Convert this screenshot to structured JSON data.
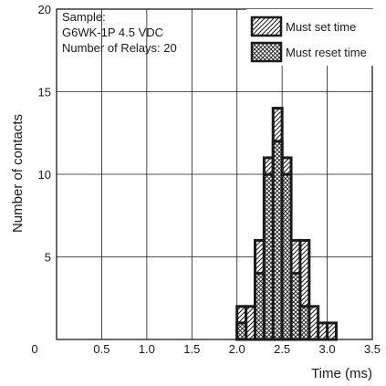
{
  "chart_data": {
    "type": "histogram",
    "xlabel": "Time (ms)",
    "ylabel": "Number of contacts",
    "xlim": [
      0,
      3.5
    ],
    "ylim": [
      0,
      20
    ],
    "x_ticks": [
      "0.5",
      "1.0",
      "1.5",
      "2.0",
      "2.5",
      "3.0",
      "3.5"
    ],
    "y_ticks": [
      "0",
      "5",
      "10",
      "15",
      "20"
    ],
    "grid": true,
    "legend_position": "top-right",
    "annotation": [
      "Sample:",
      "G6WK-1P 4.5 VDC",
      "Number of Relays: 20"
    ],
    "bin_width": 0.1,
    "series": [
      {
        "name": "Must set time",
        "hatch": "diagonal",
        "bins": [
          {
            "x0": 2.0,
            "x1": 2.1,
            "count": 2
          },
          {
            "x0": 2.1,
            "x1": 2.2,
            "count": 2
          },
          {
            "x0": 2.2,
            "x1": 2.3,
            "count": 6
          },
          {
            "x0": 2.3,
            "x1": 2.4,
            "count": 11
          },
          {
            "x0": 2.4,
            "x1": 2.5,
            "count": 14
          },
          {
            "x0": 2.5,
            "x1": 2.6,
            "count": 11
          },
          {
            "x0": 2.6,
            "x1": 2.7,
            "count": 6
          },
          {
            "x0": 2.7,
            "x1": 2.8,
            "count": 6
          },
          {
            "x0": 2.8,
            "x1": 2.9,
            "count": 2
          },
          {
            "x0": 2.9,
            "x1": 3.0,
            "count": 1
          },
          {
            "x0": 3.0,
            "x1": 3.1,
            "count": 1
          }
        ]
      },
      {
        "name": "Must reset time",
        "hatch": "crosshatch",
        "bins": [
          {
            "x0": 2.0,
            "x1": 2.1,
            "count": 1
          },
          {
            "x0": 2.1,
            "x1": 2.2,
            "count": 0
          },
          {
            "x0": 2.2,
            "x1": 2.3,
            "count": 4
          },
          {
            "x0": 2.3,
            "x1": 2.4,
            "count": 10
          },
          {
            "x0": 2.4,
            "x1": 2.5,
            "count": 12
          },
          {
            "x0": 2.5,
            "x1": 2.6,
            "count": 10
          },
          {
            "x0": 2.6,
            "x1": 2.7,
            "count": 4
          },
          {
            "x0": 2.7,
            "x1": 2.8,
            "count": 2
          },
          {
            "x0": 2.8,
            "x1": 2.9,
            "count": 0
          },
          {
            "x0": 2.9,
            "x1": 3.0,
            "count": 0
          },
          {
            "x0": 3.0,
            "x1": 3.1,
            "count": 0
          }
        ]
      }
    ]
  }
}
